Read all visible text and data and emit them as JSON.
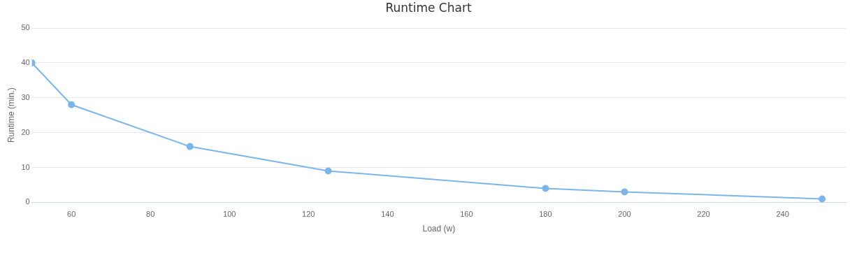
{
  "chart_data": {
    "type": "line",
    "title": "Runtime Chart",
    "xlabel": "Load (w)",
    "ylabel": "Runtime (min.)",
    "x": [
      50,
      60,
      90,
      125,
      180,
      200,
      250
    ],
    "series": [
      {
        "color": "#7cb5ec",
        "values": [
          40,
          28,
          16,
          9,
          4,
          3,
          1
        ]
      }
    ],
    "xlim": [
      50,
      256
    ],
    "xticks": [
      60,
      80,
      100,
      120,
      140,
      160,
      180,
      200,
      220,
      240
    ],
    "ylim": [
      0,
      50
    ],
    "yticks": [
      0,
      10,
      20,
      30,
      40,
      50
    ],
    "grid": "y",
    "marker": "circle",
    "line_style": "solid"
  }
}
